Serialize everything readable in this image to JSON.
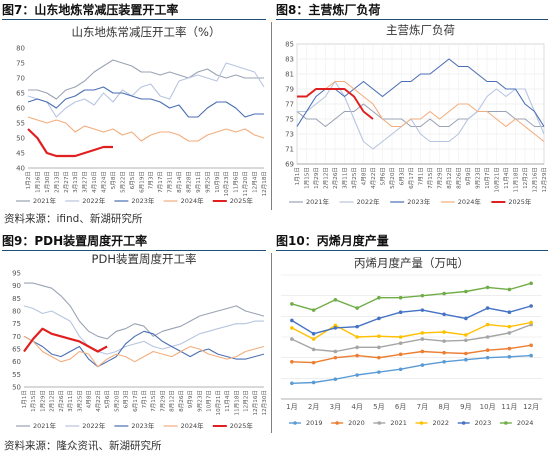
{
  "figures": {
    "fig7": "图7：山东地炼常减压装置开工率",
    "fig8": "图8：主营炼厂负荷",
    "fig9": "图9：PDH装置周度开工率",
    "fig10": "图10：丙烯月度产量"
  },
  "sources": {
    "top": "资料来源：ifind、新湖研究所",
    "bottom": "资料来源：隆众资讯、新湖研究所"
  },
  "colors": {
    "y2021": "#9aa3b5",
    "y2022": "#b7c5e0",
    "y2023": "#4a6fb5",
    "y2024": "#f2ad7e",
    "y2025": "#e02020",
    "p2019": "#5b9bd5",
    "p2020": "#ed7d31",
    "p2021": "#a5a5a5",
    "p2022": "#ffc000",
    "p2023": "#4472c4",
    "p2024": "#70ad47",
    "rule": "#1f4e79"
  },
  "chart_data": [
    {
      "id": "fig7",
      "type": "line",
      "title": "山东地炼常减压开工率（%）",
      "ylim": [
        40,
        80
      ],
      "yticks": [
        40,
        45,
        50,
        55,
        60,
        65,
        70,
        75,
        80
      ],
      "categories": [
        "1月2日",
        "1月16日",
        "1月30日",
        "2月13日",
        "2月27日",
        "3月13日",
        "3月27日",
        "4月10日",
        "4月24日",
        "5月8日",
        "5月22日",
        "6月5日",
        "6月19日",
        "7月3日",
        "7月17日",
        "7月31日",
        "8月14日",
        "8月28日",
        "9月11日",
        "9月25日",
        "10月9日",
        "10月23日",
        "11月6日",
        "11月20日",
        "12月4日",
        "12月18日"
      ],
      "series": [
        {
          "name": "2021年",
          "color_key": "y2021",
          "values": [
            66,
            66,
            65,
            63,
            66,
            67,
            69,
            72,
            74,
            76,
            75,
            74,
            72,
            72,
            71,
            72,
            71,
            70,
            72,
            73,
            71,
            70,
            71,
            70,
            70,
            70
          ]
        },
        {
          "name": "2022年",
          "color_key": "y2022",
          "values": [
            64,
            63,
            62,
            57,
            60,
            62,
            63,
            61,
            65,
            62,
            66,
            64,
            67,
            68,
            64,
            63,
            69,
            70,
            71,
            70,
            69,
            75,
            74,
            73,
            72,
            67
          ]
        },
        {
          "name": "2023年",
          "color_key": "y2023",
          "values": [
            62,
            63,
            62,
            60,
            63,
            64,
            66,
            66,
            67,
            65,
            65,
            64,
            63,
            63,
            62,
            60,
            61,
            57,
            57,
            60,
            62,
            62,
            60,
            57,
            58,
            58
          ]
        },
        {
          "name": "2024年",
          "color_key": "y2024",
          "values": [
            57,
            56,
            55,
            56,
            55,
            52,
            54,
            53,
            52,
            53,
            51,
            52,
            49,
            51,
            52,
            52,
            51,
            49,
            49,
            51,
            52,
            53,
            52,
            53,
            51,
            50
          ]
        },
        {
          "name": "2025年",
          "color_key": "y2025",
          "values": [
            53,
            50,
            45,
            44,
            44,
            44,
            45,
            46,
            47,
            47,
            null,
            null,
            null,
            null,
            null,
            null,
            null,
            null,
            null,
            null,
            null,
            null,
            null,
            null,
            null,
            null
          ]
        }
      ]
    },
    {
      "id": "fig8",
      "type": "line",
      "title": "主营炼厂负荷",
      "ylim": [
        69,
        85
      ],
      "yticks": [
        69,
        71,
        73,
        75,
        77,
        79,
        81,
        83,
        85
      ],
      "categories": [
        "1月1日",
        "1月15日",
        "1月29日",
        "2月12日",
        "2月26日",
        "3月11日",
        "3月25日",
        "4月8日",
        "4月22日",
        "5月6日",
        "5月20日",
        "6月3日",
        "6月17日",
        "7月1日",
        "7月15日",
        "7月29日",
        "8月12日",
        "8月26日",
        "9月9日",
        "9月23日",
        "10月7日",
        "10月21日",
        "11月4日",
        "11月18日",
        "12月2日",
        "12月16日",
        "12月29日"
      ],
      "series": [
        {
          "name": "2021年",
          "color_key": "y2021",
          "values": [
            76,
            75,
            75,
            74,
            75,
            76,
            76,
            77,
            76,
            75,
            75,
            75,
            74,
            74,
            75,
            74,
            74,
            75,
            75,
            76,
            76,
            76,
            76,
            75,
            75,
            74,
            74
          ]
        },
        {
          "name": "2022年",
          "color_key": "y2022",
          "values": [
            76,
            76,
            77,
            78,
            80,
            78,
            75,
            72,
            71,
            72,
            73,
            74,
            75,
            73,
            72,
            72,
            72,
            73,
            75,
            76,
            78,
            79,
            78,
            79,
            79,
            76,
            73
          ]
        },
        {
          "name": "2023年",
          "color_key": "y2023",
          "values": [
            74,
            76,
            78,
            79,
            79,
            78,
            79,
            80,
            79,
            78,
            79,
            80,
            80,
            81,
            81,
            82,
            83,
            82,
            82,
            81,
            80,
            80,
            79,
            79,
            77,
            76,
            74
          ]
        },
        {
          "name": "2024年",
          "color_key": "y2024",
          "values": [
            78,
            78,
            79,
            79,
            80,
            80,
            79,
            78,
            77,
            75,
            74,
            74,
            75,
            75,
            76,
            75,
            76,
            77,
            77,
            76,
            76,
            75,
            74,
            75,
            74,
            73,
            72
          ]
        },
        {
          "name": "2025年",
          "color_key": "y2025",
          "values": [
            78,
            78,
            79,
            79,
            79,
            79,
            78,
            76,
            75,
            null,
            null,
            null,
            null,
            null,
            null,
            null,
            null,
            null,
            null,
            null,
            null,
            null,
            null,
            null,
            null,
            null,
            null
          ]
        }
      ]
    },
    {
      "id": "fig9",
      "type": "line",
      "title": "PDH装置周度开工率",
      "ylim": [
        50,
        95
      ],
      "yticks": [
        50,
        55,
        60,
        65,
        70,
        75,
        80,
        85,
        90,
        95
      ],
      "categories": [
        "1月1日",
        "1月15日",
        "1月29日",
        "2月12日",
        "2月26日",
        "3月11日",
        "3月25日",
        "4月8日",
        "4月22日",
        "5月6日",
        "5月20日",
        "6月3日",
        "6月17日",
        "7月1日",
        "7月15日",
        "7月29日",
        "8月12日",
        "8月26日",
        "9月9日",
        "9月23日",
        "10月7日",
        "10月21日",
        "11月4日",
        "11月18日",
        "12月2日",
        "12月16日",
        "12月30日"
      ],
      "series": [
        {
          "name": "2021年",
          "color_key": "y2021",
          "values": [
            91,
            91,
            90,
            89,
            86,
            82,
            76,
            72,
            70,
            69,
            72,
            73,
            75,
            74,
            70,
            72,
            73,
            74,
            76,
            78,
            79,
            80,
            81,
            82,
            80,
            79,
            78
          ]
        },
        {
          "name": "2022年",
          "color_key": "y2022",
          "values": [
            82,
            81,
            79,
            80,
            78,
            76,
            70,
            66,
            64,
            63,
            64,
            66,
            67,
            68,
            66,
            65,
            66,
            67,
            69,
            71,
            72,
            73,
            74,
            75,
            75,
            76,
            76
          ]
        },
        {
          "name": "2023年",
          "color_key": "y2023",
          "values": [
            70,
            68,
            66,
            63,
            62,
            64,
            66,
            61,
            58,
            60,
            62,
            67,
            70,
            72,
            71,
            68,
            66,
            64,
            62,
            64,
            65,
            63,
            62,
            61,
            61,
            62,
            63
          ]
        },
        {
          "name": "2024年",
          "color_key": "y2024",
          "values": [
            70,
            68,
            64,
            62,
            60,
            61,
            64,
            63,
            58,
            61,
            63,
            62,
            60,
            62,
            64,
            63,
            62,
            64,
            66,
            65,
            63,
            62,
            61,
            62,
            64,
            65,
            66
          ]
        },
        {
          "name": "2025年",
          "color_key": "y2025",
          "values": [
            64,
            69,
            73,
            71,
            70,
            69,
            68,
            66,
            64,
            66,
            null,
            null,
            null,
            null,
            null,
            null,
            null,
            null,
            null,
            null,
            null,
            null,
            null,
            null,
            null,
            null,
            null
          ]
        }
      ]
    },
    {
      "id": "fig10",
      "type": "line",
      "title": "丙烯月度产量（万吨）",
      "ylim": [
        200,
        500
      ],
      "categories": [
        "1月",
        "2月",
        "3月",
        "4月",
        "5月",
        "6月",
        "7月",
        "8月",
        "9月",
        "10月",
        "11月",
        "12月"
      ],
      "series": [
        {
          "name": "2019",
          "color_key": "p2019",
          "values": [
            238,
            240,
            248,
            258,
            265,
            272,
            282,
            290,
            295,
            300,
            302,
            305
          ]
        },
        {
          "name": "2020",
          "color_key": "p2020",
          "values": [
            290,
            288,
            300,
            305,
            300,
            308,
            315,
            312,
            310,
            318,
            322,
            330
          ]
        },
        {
          "name": "2021",
          "color_key": "p2021",
          "values": [
            345,
            320,
            315,
            325,
            325,
            335,
            345,
            340,
            342,
            350,
            360,
            380
          ]
        },
        {
          "name": "2022",
          "color_key": "p2022",
          "values": [
            372,
            345,
            378,
            350,
            352,
            350,
            360,
            362,
            355,
            380,
            375,
            385
          ]
        },
        {
          "name": "2023",
          "color_key": "p2023",
          "values": [
            390,
            358,
            372,
            375,
            395,
            410,
            415,
            405,
            395,
            420,
            410,
            425
          ]
        },
        {
          "name": "2024",
          "color_key": "p2024",
          "values": [
            430,
            415,
            440,
            420,
            445,
            445,
            450,
            455,
            460,
            470,
            465,
            480
          ]
        }
      ]
    }
  ]
}
